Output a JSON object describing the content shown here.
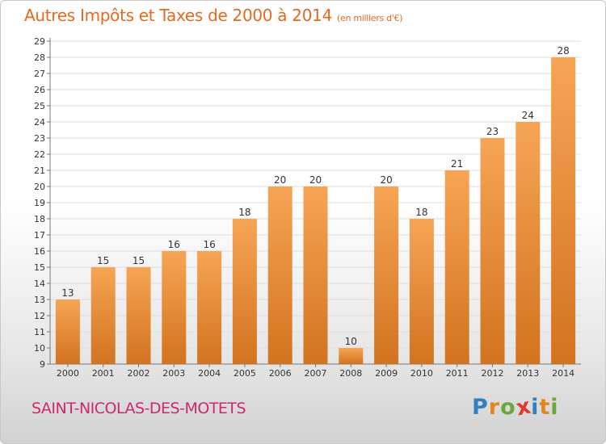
{
  "header": {
    "title": "Autres Impôts et Taxes de 2000 à 2014",
    "unit": "(en milliers d'€)"
  },
  "footer": {
    "commune": "SAINT-NICOLAS-DES-MOTETS",
    "logo_letters": [
      "P",
      "r",
      "o",
      "x",
      "i",
      "t",
      "i"
    ],
    "logo_colors": [
      "#2f7fc2",
      "#e2861e",
      "#69a83a",
      "#e23a2a",
      "#2f7fc2",
      "#e2861e",
      "#69a83a"
    ]
  },
  "chart_data": {
    "type": "bar",
    "categories": [
      "2000",
      "2001",
      "2002",
      "2003",
      "2004",
      "2005",
      "2006",
      "2007",
      "2008",
      "2009",
      "2010",
      "2011",
      "2012",
      "2013",
      "2014"
    ],
    "values": [
      13,
      15,
      15,
      16,
      16,
      18,
      20,
      20,
      10,
      20,
      18,
      21,
      23,
      24,
      28
    ],
    "ylim": [
      9,
      29
    ],
    "yticks": [
      9,
      10,
      11,
      12,
      13,
      14,
      15,
      16,
      17,
      18,
      19,
      20,
      21,
      22,
      23,
      24,
      25,
      26,
      27,
      28,
      29
    ],
    "grid": true,
    "bar_color": "#f0923a"
  }
}
